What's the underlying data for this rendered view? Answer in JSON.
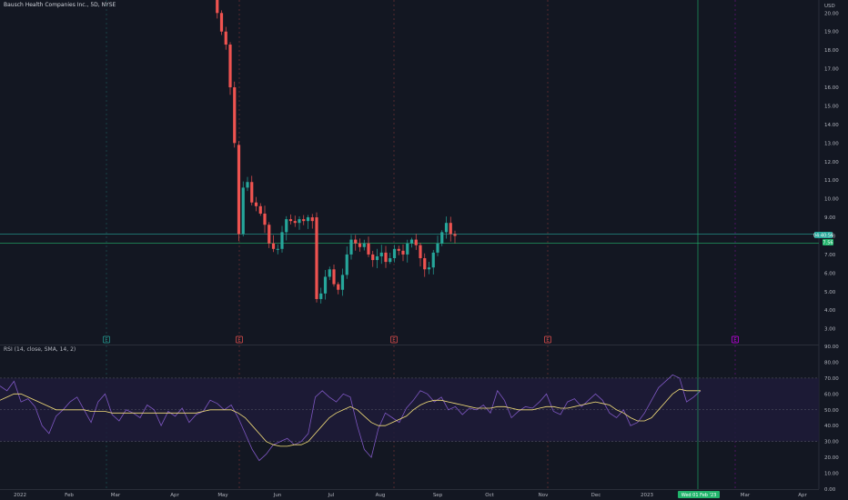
{
  "symbol_title": "Bausch Health Companies Inc., 5D, NYSE",
  "rsi_title": "RSI (14, close, SMA, 14, 2)",
  "currency": "USD",
  "crosshair_date": "Wed 01 Feb '23",
  "price_badge": "04:40:56",
  "line_badge": "7.56",
  "colors": {
    "up": "#26a69a",
    "down": "#ef5350",
    "rsi": "#7e57c2",
    "sma": "#f5e07a",
    "band": "#1f1b38",
    "grid": "#1e222d",
    "accent": "#21b46b"
  },
  "chart_data": [
    {
      "type": "candlestick",
      "title": "Bausch Health Companies Inc., 5D, NYSE",
      "ylabel": "USD",
      "ylim": [
        2.2,
        20.7
      ],
      "y_ticks": [
        "3.00",
        "4.00",
        "5.00",
        "6.00",
        "7.00",
        "8.00",
        "9.00",
        "10.00",
        "11.00",
        "12.00",
        "13.00",
        "14.00",
        "15.00",
        "16.00",
        "17.00",
        "18.00",
        "19.00",
        "20.00"
      ],
      "x_ticks": [
        "2022",
        "Feb",
        "Mar",
        "Apr",
        "May",
        "Jun",
        "Jul",
        "Aug",
        "Sep",
        "Oct",
        "Nov",
        "Dec",
        "2023",
        "Feb",
        "Mar",
        "Apr"
      ],
      "horizontal_lines": [
        8.1,
        7.6
      ],
      "anchors": [
        [
          0,
          20.9
        ],
        [
          1,
          20.0
        ],
        [
          2,
          19.0
        ],
        [
          3,
          18.3
        ],
        [
          4,
          16.0
        ],
        [
          5,
          13.0
        ],
        [
          6,
          8.1
        ],
        [
          7,
          10.6
        ],
        [
          8,
          10.9
        ],
        [
          9,
          9.8
        ],
        [
          10,
          9.6
        ],
        [
          11,
          9.2
        ],
        [
          12,
          8.6
        ],
        [
          13,
          7.6
        ],
        [
          14,
          7.3
        ],
        [
          15,
          7.3
        ],
        [
          16,
          8.2
        ],
        [
          17,
          8.9
        ],
        [
          18,
          8.8
        ],
        [
          19,
          8.7
        ],
        [
          20,
          8.9
        ],
        [
          21,
          8.8
        ],
        [
          22,
          9.0
        ],
        [
          23,
          8.8
        ],
        [
          24,
          4.6
        ],
        [
          25,
          4.9
        ],
        [
          26,
          5.8
        ],
        [
          27,
          6.2
        ],
        [
          28,
          5.4
        ],
        [
          29,
          5.1
        ],
        [
          30,
          5.9
        ],
        [
          31,
          7.0
        ],
        [
          32,
          7.8
        ],
        [
          33,
          7.6
        ],
        [
          34,
          7.4
        ],
        [
          35,
          7.6
        ],
        [
          36,
          7.0
        ],
        [
          37,
          6.7
        ],
        [
          38,
          6.9
        ],
        [
          39,
          7.1
        ],
        [
          40,
          6.6
        ],
        [
          41,
          6.8
        ],
        [
          42,
          7.3
        ],
        [
          43,
          7.2
        ],
        [
          44,
          7.0
        ],
        [
          45,
          7.6
        ],
        [
          46,
          7.8
        ],
        [
          47,
          7.5
        ],
        [
          48,
          6.8
        ],
        [
          49,
          6.2
        ],
        [
          50,
          6.3
        ],
        [
          51,
          7.1
        ],
        [
          52,
          7.6
        ],
        [
          53,
          8.2
        ],
        [
          54,
          8.7
        ],
        [
          55,
          8.1
        ],
        [
          56,
          8.0
        ]
      ],
      "event_markers": [
        "E",
        "E",
        "E",
        "E",
        "E"
      ]
    },
    {
      "type": "line",
      "title": "RSI (14, close, SMA, 14, 2)",
      "ylim": [
        0,
        90
      ],
      "y_ticks": [
        "0.00",
        "10.00",
        "20.00",
        "30.00",
        "40.00",
        "50.00",
        "60.00",
        "70.00",
        "80.00",
        "90.00"
      ],
      "band": [
        30,
        70
      ],
      "series": [
        {
          "values": [
            65,
            62,
            68,
            55,
            57,
            52,
            40,
            35,
            46,
            50,
            55,
            58,
            50,
            42,
            55,
            60,
            47,
            43,
            50,
            48,
            45,
            53,
            50,
            40,
            49,
            46,
            51,
            42,
            47,
            49,
            56,
            54,
            50,
            53,
            45,
            35,
            25,
            18,
            22,
            28,
            30,
            32,
            28,
            30,
            35,
            58,
            62,
            58,
            55,
            60,
            58,
            40,
            25,
            20,
            38,
            48,
            45,
            42,
            51,
            56,
            62,
            60,
            55,
            58,
            50,
            52,
            47,
            51,
            50,
            53,
            48,
            62,
            56,
            45,
            49,
            52,
            51,
            55,
            60,
            49,
            47,
            55,
            57,
            52,
            56,
            60,
            56,
            48,
            45,
            50,
            40,
            42,
            48,
            56,
            64,
            68,
            72,
            70,
            55,
            58,
            62
          ]
        },
        {
          "values": [
            56,
            58,
            60,
            60,
            58,
            56,
            54,
            52,
            50,
            50,
            50,
            50,
            50,
            49,
            49,
            49,
            48,
            48,
            48,
            48,
            48,
            48,
            48,
            48,
            48,
            48,
            48,
            48,
            48,
            49,
            50,
            50,
            50,
            50,
            48,
            45,
            40,
            35,
            30,
            28,
            27,
            27,
            28,
            28,
            30,
            35,
            40,
            45,
            48,
            50,
            52,
            50,
            46,
            42,
            40,
            40,
            42,
            44,
            46,
            50,
            53,
            55,
            56,
            56,
            55,
            54,
            53,
            52,
            51,
            51,
            51,
            52,
            52,
            51,
            50,
            50,
            50,
            51,
            52,
            52,
            51,
            51,
            52,
            53,
            54,
            55,
            54,
            53,
            50,
            48,
            45,
            43,
            43,
            45,
            50,
            55,
            60,
            63,
            62,
            62,
            62
          ]
        }
      ]
    }
  ]
}
